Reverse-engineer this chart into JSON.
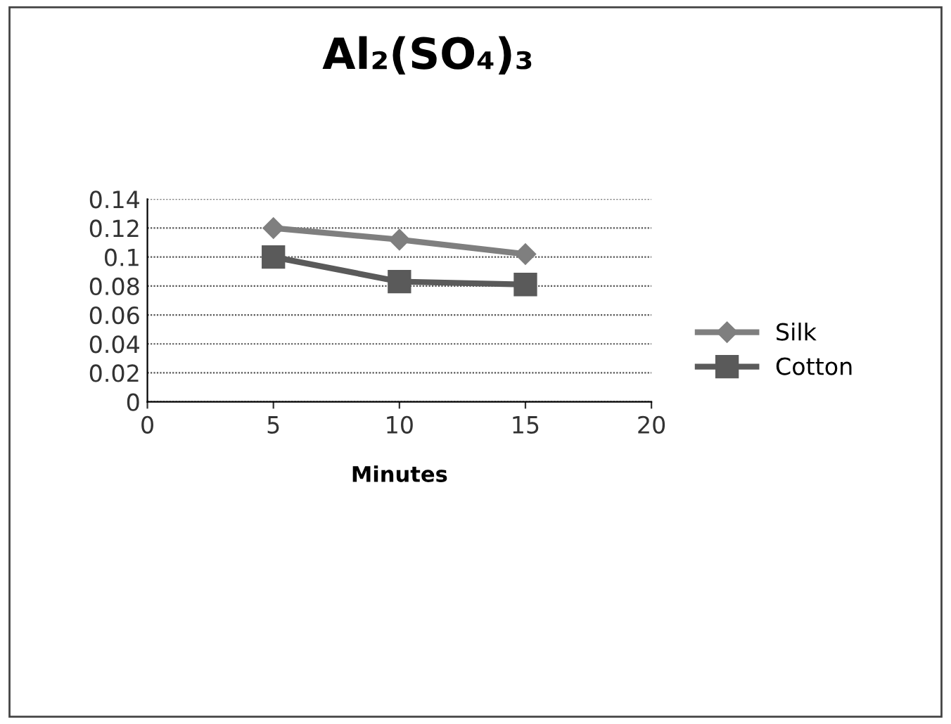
{
  "chart_data": {
    "type": "line",
    "title": "Al₂(SO₄)₃",
    "xlabel": "Minutes",
    "x": [
      5,
      10,
      15
    ],
    "series": [
      {
        "name": "Silk",
        "color": "#7f7f7f",
        "marker": "diamond",
        "values": [
          0.12,
          0.112,
          0.102
        ]
      },
      {
        "name": "Cotton",
        "color": "#5a5a5a",
        "marker": "square",
        "values": [
          0.1,
          0.083,
          0.081
        ]
      }
    ],
    "xlim": [
      0,
      20
    ],
    "xticks": [
      0,
      5,
      10,
      15,
      20
    ],
    "ylim": [
      0,
      0.14
    ],
    "yticks": [
      0,
      0.02,
      0.04,
      0.06,
      0.08,
      0.1,
      0.12,
      0.14
    ],
    "grid": "y",
    "legend": "right",
    "line_style": "solid"
  }
}
